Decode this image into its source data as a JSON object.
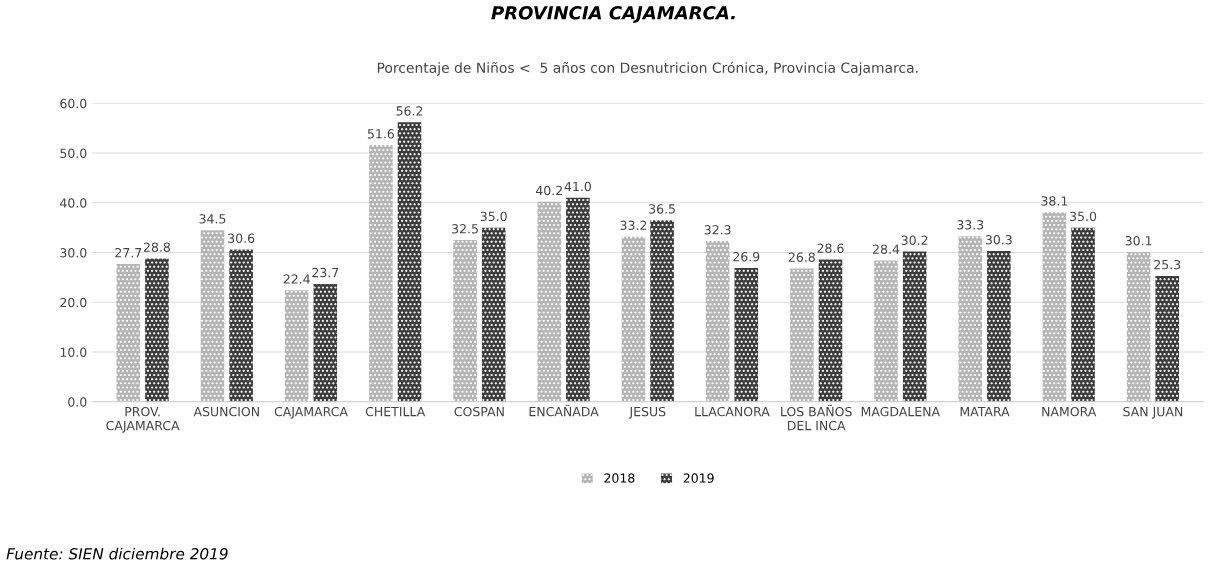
{
  "chart_data": {
    "type": "bar",
    "title": "PROVINCIA CAJAMARCA.",
    "subtitle": "Porcentaje de Niños <  5 años con Desnutricion Crónica, Provincia Cajamarca.",
    "categories": [
      "PROV.\nCAJAMARCA",
      "ASUNCION",
      "CAJAMARCA",
      "CHETILLA",
      "COSPAN",
      "ENCAÑADA",
      "JESUS",
      "LLACANORA",
      "LOS BAÑOS\nDEL INCA",
      "MAGDALENA",
      "MATARA",
      "NAMORA",
      "SAN JUAN"
    ],
    "series": [
      {
        "name": "2018",
        "color": "#b4b4b4",
        "values": [
          27.7,
          34.5,
          22.4,
          51.6,
          32.5,
          40.2,
          33.2,
          32.3,
          26.8,
          28.4,
          33.3,
          38.1,
          30.1
        ]
      },
      {
        "name": "2019",
        "color": "#3c3c3c",
        "values": [
          28.8,
          30.6,
          23.7,
          56.2,
          35.0,
          41.0,
          36.5,
          26.9,
          28.6,
          30.2,
          30.3,
          35.0,
          25.3
        ]
      }
    ],
    "ylim": [
      0,
      60
    ],
    "yticks": [
      {
        "value": 0,
        "label": "0.0"
      },
      {
        "value": 10,
        "label": "10.0"
      },
      {
        "value": 20,
        "label": "20.0"
      },
      {
        "value": 30,
        "label": "30.0"
      },
      {
        "value": 40,
        "label": "40.0"
      },
      {
        "value": 50,
        "label": "50.0"
      },
      {
        "value": 60,
        "label": "60.0"
      }
    ],
    "value_labels": [
      [
        "27.7",
        "34.5",
        "22.4",
        "51.6",
        "32.5",
        "40.2",
        "33.2",
        "32.3",
        "26.8",
        "28.4",
        "33.3",
        "38.1",
        "30.1"
      ],
      [
        "28.8",
        "30.6",
        "23.7",
        "56.2",
        "35.0",
        "41.0",
        "36.5",
        "26.9",
        "28.6",
        "30.2",
        "30.3",
        "35.0",
        "25.3"
      ]
    ],
    "grid": "y",
    "legend": "bottom",
    "annotations": [
      "Fuente: SIEN diciembre 2019"
    ]
  }
}
